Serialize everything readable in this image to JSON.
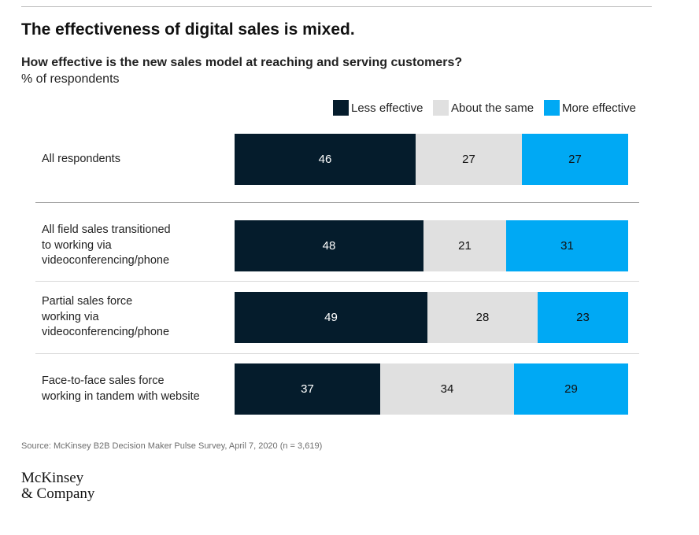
{
  "colors": {
    "less_effective": "#051c2c",
    "about_the_same": "#e0e0e0",
    "more_effective": "#00a9f4",
    "rule": "#bdbdbd",
    "source_text": "#6e6e6e"
  },
  "header": {
    "title": "The effectiveness of digital sales is mixed.",
    "subtitle": "How effective is the new sales model at reaching and serving customers?",
    "unit": "% of respondents"
  },
  "chart_data": {
    "type": "bar",
    "orientation": "horizontal",
    "stacked": true,
    "normalized": true,
    "title": "The effectiveness of digital sales is mixed.",
    "subtitle": "How effective is the new sales model at reaching and serving customers?",
    "unit": "% of respondents",
    "categories": [
      [
        "All respondents"
      ],
      [
        "All field sales transitioned",
        "to working via",
        "videoconferencing/phone"
      ],
      [
        "Partial sales force",
        "working via",
        "videoconferencing/phone"
      ],
      [
        "Face-to-face sales force",
        "working in tandem with website"
      ]
    ],
    "series": [
      {
        "name": "Less effective",
        "color": "#051c2c",
        "text_color": "#ffffff",
        "values": [
          46,
          48,
          49,
          37
        ]
      },
      {
        "name": "About the same",
        "color": "#e0e0e0",
        "text_color": "#111111",
        "values": [
          27,
          21,
          28,
          34
        ]
      },
      {
        "name": "More effective",
        "color": "#00a9f4",
        "text_color": "#111111",
        "values": [
          27,
          31,
          23,
          29
        ]
      }
    ],
    "legend_position": "top-right",
    "grid": false
  },
  "footer": {
    "source": "Source: McKinsey B2B Decision Maker Pulse Survey, April 7, 2020 (n = 3,619)",
    "logo_lines": [
      "McKinsey",
      "& Company"
    ]
  }
}
